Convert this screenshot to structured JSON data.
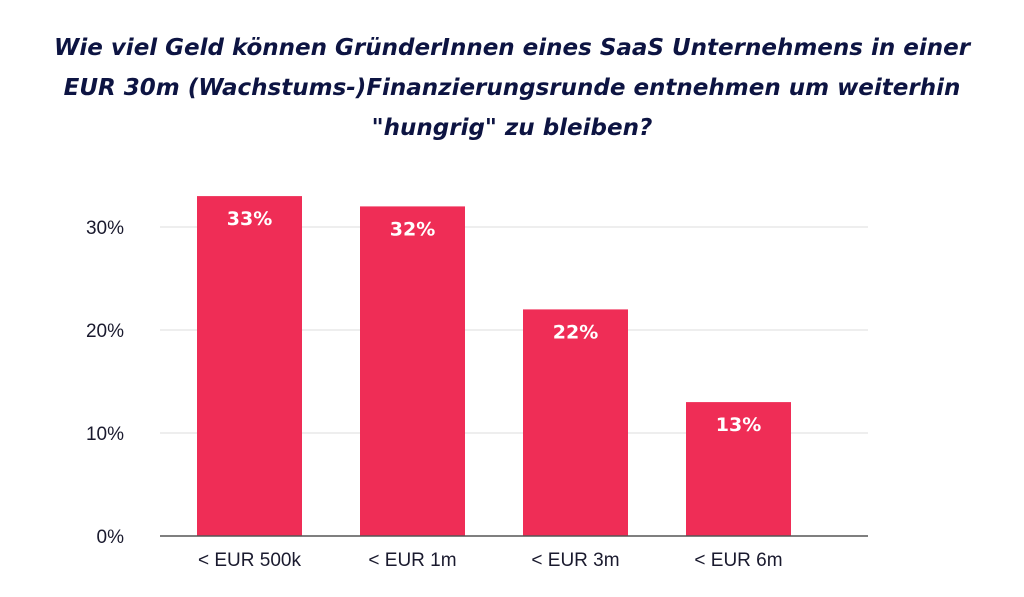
{
  "chart_data": {
    "type": "bar",
    "title": "Wie viel Geld können GründerInnen eines SaaS Unternehmens in einer EUR 30m (Wachstums-)Finanzierungsrunde entnehmen um weiterhin \"hungrig\" zu bleiben?",
    "categories": [
      "< EUR 500k",
      "< EUR 1m",
      "< EUR 3m",
      "< EUR 6m"
    ],
    "values": [
      33,
      32,
      22,
      13
    ],
    "data_labels": [
      "33%",
      "32%",
      "22%",
      "13%"
    ],
    "yticks": [
      0,
      10,
      20,
      30
    ],
    "ytick_labels": [
      "0%",
      "10%",
      "20%",
      "30%"
    ],
    "ylim": [
      0,
      35
    ],
    "xlabel": "",
    "ylabel": "",
    "grid": true,
    "bar_color": "#ef2d56",
    "grid_color": "#e3e3e3",
    "axis_color": "#555555"
  }
}
